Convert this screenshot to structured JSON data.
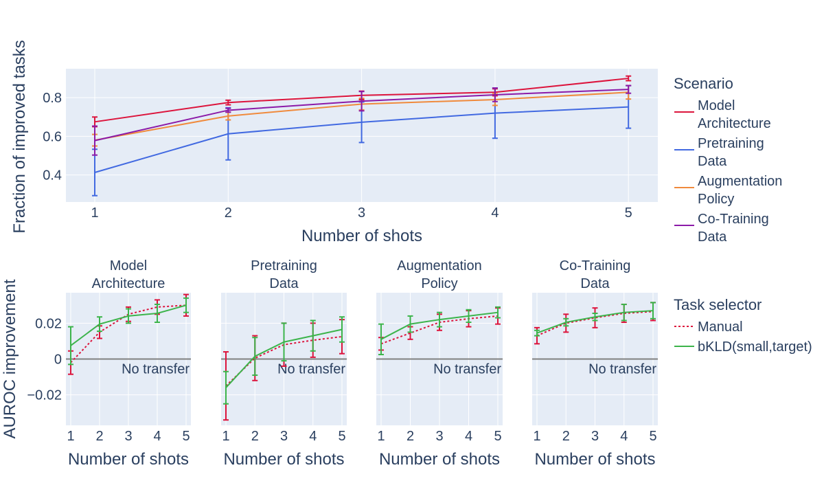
{
  "chart_data": [
    {
      "type": "line",
      "ylabel": "Fraction of improved tasks",
      "xlabel": "Number of shots",
      "x": [
        1,
        2,
        3,
        4,
        5
      ],
      "x_ticks": [
        "1",
        "2",
        "3",
        "4",
        "5"
      ],
      "y_ticks": [
        "0.4",
        "0.6",
        "0.8"
      ],
      "ylim": [
        0.26,
        0.95
      ],
      "legend": {
        "title": "Scenario",
        "placement": "right"
      },
      "series": [
        {
          "name": "Model Architecture",
          "name_lines": [
            "Model",
            "Architecture"
          ],
          "color": "#dc143c",
          "values": [
            0.675,
            0.775,
            0.812,
            0.828,
            0.9
          ],
          "err": [
            0.025,
            0.012,
            0.022,
            0.018,
            0.012
          ]
        },
        {
          "name": "Pretraining Data",
          "name_lines": [
            "Pretraining",
            "Data"
          ],
          "color": "#4169e1",
          "values": [
            0.413,
            0.613,
            0.673,
            0.72,
            0.752
          ],
          "err": [
            0.12,
            0.135,
            0.105,
            0.13,
            0.11
          ]
        },
        {
          "name": "Augmentation Policy",
          "name_lines": [
            "Augmentation",
            "Policy"
          ],
          "color": "#f08a3c",
          "values": [
            0.58,
            0.705,
            0.767,
            0.79,
            0.828
          ],
          "err": [
            0.03,
            0.02,
            0.03,
            0.03,
            0.035
          ]
        },
        {
          "name": "Co-Training Data",
          "name_lines": [
            "Co-Training",
            "Data"
          ],
          "color": "#8b1aa8",
          "values": [
            0.578,
            0.735,
            0.782,
            0.815,
            0.843
          ],
          "err": [
            0.075,
            0.01,
            0.05,
            0.035,
            0.02
          ]
        }
      ]
    },
    {
      "type": "line",
      "ylabel": "AUROC improvement",
      "xlabel": "Number of shots",
      "x": [
        1,
        2,
        3,
        4,
        5
      ],
      "x_ticks": [
        "1",
        "2",
        "3",
        "4",
        "5"
      ],
      "y_ticks": [
        "−0.02",
        "0",
        "0.02"
      ],
      "ylim": [
        -0.037,
        0.037
      ],
      "annotation": "No transfer",
      "legend": {
        "title": "Task selector",
        "placement": "right"
      },
      "series_styles": [
        {
          "name": "Manual",
          "color": "#dc143c",
          "dash": true
        },
        {
          "name": "bKLD(small,target)",
          "color": "#3cb44b",
          "dash": false
        }
      ],
      "panels": [
        {
          "title_lines": [
            "Model",
            "Architecture"
          ],
          "series": [
            {
              "name": "Manual",
              "values": [
                -0.002,
                0.015,
                0.025,
                0.029,
                0.03
              ],
              "err": [
                0.0065,
                0.0035,
                0.004,
                0.004,
                0.006
              ]
            },
            {
              "name": "bKLD(small,target)",
              "values": [
                0.0075,
                0.0195,
                0.024,
                0.0255,
                0.03
              ],
              "err": [
                0.0105,
                0.004,
                0.004,
                0.005,
                0.004
              ]
            }
          ]
        },
        {
          "title_lines": [
            "Pretraining",
            "Data"
          ],
          "series": [
            {
              "name": "Manual",
              "values": [
                -0.015,
                0.0005,
                0.008,
                0.0105,
                0.0125
              ],
              "err": [
                0.019,
                0.0125,
                0.012,
                0.0095,
                0.0095
              ]
            },
            {
              "name": "bKLD(small,target)",
              "values": [
                -0.016,
                0.0015,
                0.0095,
                0.013,
                0.0165
              ],
              "err": [
                0.009,
                0.0105,
                0.0105,
                0.0085,
                0.007
              ]
            }
          ]
        },
        {
          "title_lines": [
            "Augmentation",
            "Policy"
          ],
          "series": [
            {
              "name": "Manual",
              "values": [
                0.0085,
                0.0145,
                0.0205,
                0.0225,
                0.024
              ],
              "err": [
                0.0035,
                0.0035,
                0.0045,
                0.0045,
                0.0045
              ]
            },
            {
              "name": "bKLD(small,target)",
              "values": [
                0.011,
                0.0195,
                0.022,
                0.024,
                0.026
              ],
              "err": [
                0.0085,
                0.0045,
                0.004,
                0.0035,
                0.003
              ]
            }
          ]
        },
        {
          "title_lines": [
            "Co-Training",
            "Data"
          ],
          "series": [
            {
              "name": "Manual",
              "values": [
                0.013,
                0.02,
                0.023,
                0.0255,
                0.0265
              ],
              "err": [
                0.0045,
                0.005,
                0.0055,
                0.005,
                0.005
              ]
            },
            {
              "name": "bKLD(small,target)",
              "values": [
                0.0145,
                0.0205,
                0.0235,
                0.026,
                0.027
              ],
              "err": [
                0.0015,
                0.002,
                0.002,
                0.0045,
                0.0045
              ]
            }
          ]
        }
      ]
    }
  ]
}
